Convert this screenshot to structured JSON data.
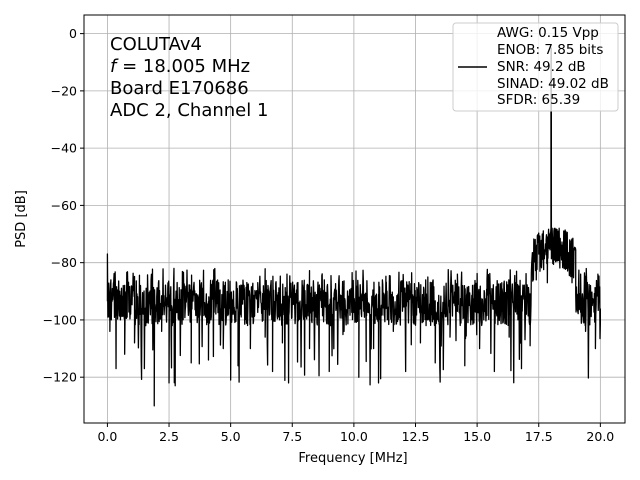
{
  "chart_data": {
    "type": "line",
    "xlabel": "Frequency [MHz]",
    "ylabel": "PSD [dB]",
    "xlim": [
      -0.95,
      21.0
    ],
    "ylim": [
      -136,
      6.5
    ],
    "xticks": [
      0.0,
      2.5,
      5.0,
      7.5,
      10.0,
      12.5,
      15.0,
      17.5,
      20.0
    ],
    "xtick_labels": [
      "0.0",
      "2.5",
      "5.0",
      "7.5",
      "10.0",
      "12.5",
      "15.0",
      "17.5",
      "20.0"
    ],
    "yticks": [
      0,
      -20,
      -40,
      -60,
      -80,
      -100,
      -120
    ],
    "ytick_labels": [
      "0",
      "−20",
      "−40",
      "−60",
      "−80",
      "−100",
      "−120"
    ],
    "grid": true,
    "legend_location": "upper right",
    "line_color": "#000000",
    "annotation_lines": [
      "COLUTAv4",
      "f = 18.005 MHz",
      "Board E170686",
      "ADC 2, Channel 1"
    ],
    "legend_lines": [
      "AWG: 0.15 Vpp",
      "ENOB: 7.85 bits",
      "SNR: 49.2 dB",
      "SINAD: 49.02 dB",
      "SFDR: 65.39"
    ],
    "series": [
      {
        "description": "noise floor + elevated band + fundamental tone",
        "noise_floor": {
          "x_start": 0.0,
          "x_end": 20.0,
          "mean_db": -94,
          "upper_db": -85,
          "lower_db": -105,
          "deep_dips_db": -123
        },
        "start_spike_db": -77,
        "band": {
          "x_start": 17.2,
          "x_end": 19.0,
          "mean_db": -80,
          "upper_db": -68,
          "lower_db": -90
        },
        "tone": {
          "x": 18.005,
          "peak_db": -5
        },
        "points": [
          [
            0.0,
            -77
          ],
          [
            0.02,
            -99
          ],
          [
            0.06,
            -88
          ],
          [
            0.1,
            -104
          ],
          [
            0.14,
            -86
          ],
          [
            0.35,
            -117
          ],
          [
            0.5,
            -90
          ],
          [
            0.7,
            -112
          ],
          [
            0.9,
            -95
          ],
          [
            1.1,
            -108
          ],
          [
            1.3,
            -87
          ],
          [
            1.5,
            -117
          ],
          [
            1.75,
            -92
          ],
          [
            1.9,
            -130
          ],
          [
            2.0,
            -92
          ],
          [
            2.2,
            -104
          ],
          [
            2.45,
            -89
          ],
          [
            2.5,
            -122
          ],
          [
            2.6,
            -95
          ],
          [
            2.75,
            -123
          ],
          [
            2.9,
            -100
          ],
          [
            3.1,
            -88
          ],
          [
            3.4,
            -115
          ],
          [
            3.7,
            -92
          ],
          [
            3.9,
            -84
          ],
          [
            4.1,
            -114
          ],
          [
            4.4,
            -96
          ],
          [
            4.7,
            -110
          ],
          [
            4.9,
            -86
          ],
          [
            5.0,
            -121
          ],
          [
            5.1,
            -98
          ],
          [
            5.3,
            -116
          ],
          [
            5.55,
            -90
          ],
          [
            5.8,
            -110
          ],
          [
            6.1,
            -87
          ],
          [
            6.4,
            -106
          ],
          [
            6.7,
            -118
          ],
          [
            6.9,
            -94
          ],
          [
            7.1,
            -108
          ],
          [
            7.35,
            -122
          ],
          [
            7.6,
            -95
          ],
          [
            7.9,
            -88
          ],
          [
            8.2,
            -110
          ],
          [
            8.5,
            -101
          ],
          [
            8.8,
            -86
          ],
          [
            9.0,
            -118
          ],
          [
            9.3,
            -96
          ],
          [
            9.6,
            -104
          ],
          [
            9.9,
            -89
          ],
          [
            10.2,
            -120
          ],
          [
            10.5,
            -94
          ],
          [
            10.8,
            -110
          ],
          [
            11.0,
            -122
          ],
          [
            11.3,
            -96
          ],
          [
            11.6,
            -104
          ],
          [
            11.9,
            -88
          ],
          [
            12.1,
            -118
          ],
          [
            12.4,
            -96
          ],
          [
            12.7,
            -108
          ],
          [
            13.0,
            -85
          ],
          [
            13.3,
            -115
          ],
          [
            13.6,
            -98
          ],
          [
            13.9,
            -106
          ],
          [
            14.2,
            -84
          ],
          [
            14.5,
            -116
          ],
          [
            14.8,
            -100
          ],
          [
            15.1,
            -110
          ],
          [
            15.4,
            -86
          ],
          [
            15.7,
            -118
          ],
          [
            16.0,
            -97
          ],
          [
            16.3,
            -106
          ],
          [
            16.6,
            -83
          ],
          [
            16.8,
            -117
          ],
          [
            17.0,
            -98
          ],
          [
            17.15,
            -109
          ],
          [
            17.3,
            -80
          ],
          [
            17.4,
            -86
          ],
          [
            17.5,
            -77
          ],
          [
            17.55,
            -83
          ],
          [
            17.6,
            -73
          ],
          [
            17.7,
            -78
          ],
          [
            17.8,
            -72
          ],
          [
            17.85,
            -87
          ],
          [
            17.95,
            -70
          ],
          [
            18.0,
            -14
          ],
          [
            18.005,
            -5
          ],
          [
            18.01,
            -30
          ],
          [
            18.03,
            -72
          ],
          [
            18.1,
            -80
          ],
          [
            18.25,
            -70
          ],
          [
            18.4,
            -74
          ],
          [
            18.55,
            -73
          ],
          [
            18.7,
            -80
          ],
          [
            18.85,
            -87
          ],
          [
            19.0,
            -91
          ],
          [
            19.2,
            -84
          ],
          [
            19.4,
            -104
          ],
          [
            19.6,
            -88
          ],
          [
            19.8,
            -110
          ],
          [
            19.9,
            -84
          ],
          [
            20.0,
            -96
          ]
        ]
      }
    ]
  }
}
